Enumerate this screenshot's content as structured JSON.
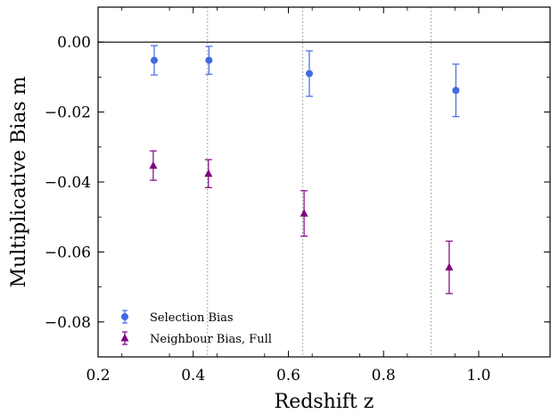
{
  "chart_data": {
    "type": "scatter",
    "xlabel": "Redshift z",
    "ylabel": "Multiplicative Bias m",
    "xlim": [
      0.2,
      1.15
    ],
    "ylim": [
      -0.09,
      0.01
    ],
    "x_ticks": [
      0.2,
      0.4,
      0.6,
      0.8,
      1.0
    ],
    "x_tick_labels": [
      "0.2",
      "0.4",
      "0.6",
      "0.8",
      "1.0"
    ],
    "y_ticks": [
      0.0,
      -0.02,
      -0.04,
      -0.06,
      -0.08
    ],
    "y_tick_labels": [
      "0.00",
      "−0.02",
      "−0.04",
      "−0.06",
      "−0.08"
    ],
    "grid": false,
    "reference_hline": 0.0,
    "bin_edges_vlines": [
      0.43,
      0.63,
      0.9
    ],
    "legend_placement": "lower-left",
    "series": [
      {
        "name": "Selection Bias",
        "marker": "circle",
        "color": "#4169e1",
        "x": [
          0.318,
          0.433,
          0.644,
          0.952
        ],
        "y": [
          -0.0052,
          -0.0052,
          -0.009,
          -0.0138
        ],
        "yerr": [
          0.0042,
          0.004,
          0.0065,
          0.0075
        ]
      },
      {
        "name": "Neighbour Bias, Full",
        "marker": "triangle",
        "color": "#800080",
        "x": [
          0.316,
          0.432,
          0.633,
          0.938
        ],
        "y": [
          -0.0353,
          -0.0376,
          -0.049,
          -0.0644
        ],
        "yerr": [
          0.0042,
          0.004,
          0.0065,
          0.0075
        ]
      }
    ]
  }
}
